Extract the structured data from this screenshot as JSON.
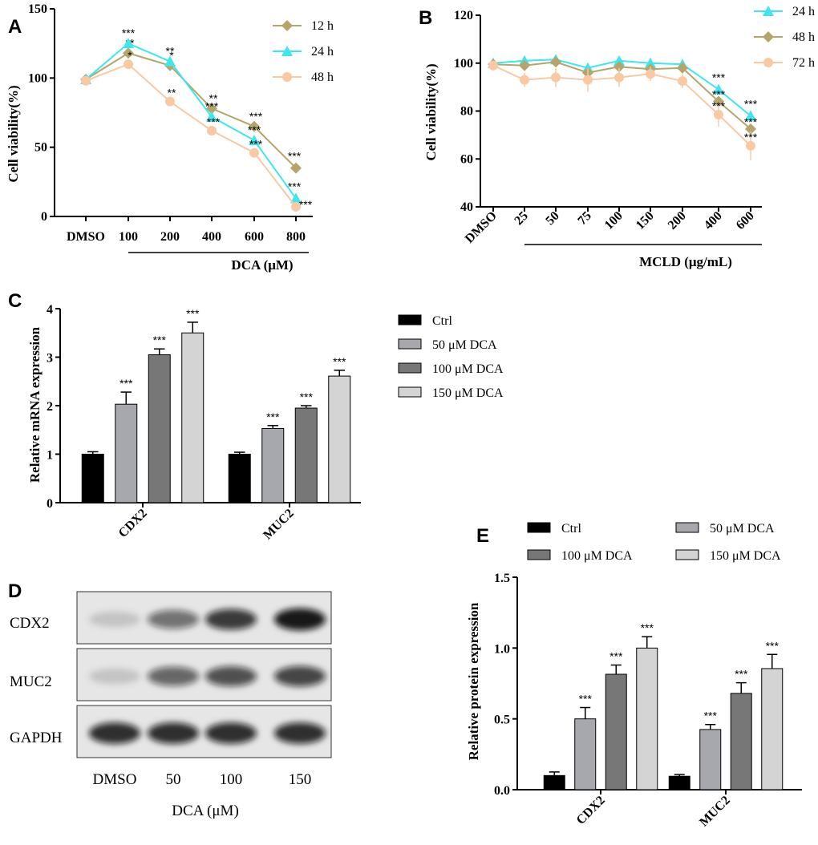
{
  "chart_data": [
    {
      "panel": "A",
      "type": "line",
      "ylabel": "Cell viability(%)",
      "xlabel": "DCA (μM)",
      "categories": [
        "DMSO",
        "100",
        "200",
        "400",
        "600",
        "800"
      ],
      "ylim": [
        0,
        150
      ],
      "yticks": [
        0,
        50,
        100,
        150
      ],
      "series": [
        {
          "name": "12 h",
          "color": "#B5A56A",
          "marker": "diamond",
          "values": [
            99,
            118,
            109,
            78,
            65,
            35
          ],
          "errors": [
            0,
            0,
            0,
            0,
            0,
            0
          ],
          "stars": [
            "",
            "**",
            "*",
            "**",
            "***",
            "***"
          ]
        },
        {
          "name": "24 h",
          "color": "#3EE6EE",
          "marker": "triangle",
          "values": [
            99,
            125,
            112,
            72,
            55,
            13
          ],
          "errors": [
            0,
            0,
            0,
            0,
            0,
            0
          ],
          "stars": [
            "",
            "***",
            "**",
            "***",
            "***",
            "***"
          ]
        },
        {
          "name": "48 h",
          "color": "#F9C9A4",
          "marker": "circle",
          "values": [
            98,
            110,
            83,
            62,
            46,
            7
          ],
          "errors": [
            0,
            0,
            0,
            0,
            0,
            0
          ],
          "stars": [
            "",
            "*",
            "**",
            "***",
            "***",
            "***"
          ]
        }
      ]
    },
    {
      "panel": "B",
      "type": "line",
      "ylabel": "Cell viability(%)",
      "xlabel": "MCLD (μg/mL)",
      "categories": [
        "DMSO",
        "25",
        "50",
        "75",
        "100",
        "150",
        "200",
        "400",
        "600"
      ],
      "ylim": [
        40,
        120
      ],
      "yticks": [
        40,
        60,
        80,
        100,
        120
      ],
      "series": [
        {
          "name": "24 h",
          "color": "#3EE6EE",
          "marker": "triangle",
          "values": [
            100,
            101,
            101.5,
            98,
            101,
            100,
            99.5,
            89,
            78
          ],
          "errors": [
            1,
            1.5,
            1.5,
            1.5,
            1.5,
            1,
            1,
            2,
            2
          ],
          "stars": [
            "",
            "",
            "",
            "",
            "",
            "",
            "",
            "***",
            "***"
          ]
        },
        {
          "name": "48 h",
          "color": "#B5A56A",
          "marker": "diamond",
          "values": [
            99.5,
            99,
            100.5,
            96,
            98.5,
            97.5,
            98,
            84,
            72.5
          ],
          "errors": [
            1,
            1.5,
            1.5,
            1.5,
            1.5,
            1.5,
            1.5,
            2,
            2
          ],
          "stars": [
            "",
            "",
            "",
            "",
            "",
            "",
            "",
            "***",
            "***"
          ]
        },
        {
          "name": "72 h",
          "color": "#F9C9A4",
          "marker": "circle",
          "values": [
            99,
            93,
            94,
            93,
            94,
            95.5,
            92.5,
            78.5,
            65.5
          ],
          "errors": [
            2,
            3,
            4,
            5,
            4,
            3,
            3,
            5,
            6
          ],
          "stars": [
            "",
            "",
            "",
            "",
            "",
            "",
            "",
            "***",
            "***"
          ]
        }
      ]
    },
    {
      "panel": "C",
      "type": "bar",
      "ylabel": "Relative mRNA expression",
      "categories": [
        "CDX2",
        "MUC2"
      ],
      "ylim": [
        0,
        4
      ],
      "yticks": [
        0,
        1,
        2,
        3,
        4
      ],
      "series": [
        {
          "name": "Ctrl",
          "color": "#000000",
          "values": [
            1.0,
            1.0
          ],
          "errors": [
            0.05,
            0.04
          ],
          "stars": [
            "",
            ""
          ]
        },
        {
          "name": "50   μM DCA",
          "color": "#A7A7AE",
          "values": [
            2.03,
            1.53
          ],
          "errors": [
            0.25,
            0.06
          ],
          "stars": [
            "***",
            "***"
          ]
        },
        {
          "name": "100  μM DCA",
          "color": "#777777",
          "values": [
            3.05,
            1.95
          ],
          "errors": [
            0.12,
            0.05
          ],
          "stars": [
            "***",
            "***"
          ]
        },
        {
          "name": "150  μM DCA",
          "color": "#D4D4D4",
          "values": [
            3.5,
            2.61
          ],
          "errors": [
            0.22,
            0.12
          ],
          "stars": [
            "***",
            "***"
          ]
        }
      ]
    },
    {
      "panel": "E",
      "type": "bar",
      "ylabel": "Relative protein expression",
      "categories": [
        "CDX2",
        "MUC2"
      ],
      "ylim": [
        0,
        1.5
      ],
      "yticks": [
        "0.0",
        "0.5",
        "1.0",
        "1.5"
      ],
      "series": [
        {
          "name": "Ctrl",
          "color": "#000000",
          "values": [
            0.1,
            0.095
          ],
          "errors": [
            0.025,
            0.012
          ],
          "stars": [
            "",
            ""
          ]
        },
        {
          "name": "50   μM DCA",
          "color": "#A7A7AE",
          "values": [
            0.5,
            0.425
          ],
          "errors": [
            0.08,
            0.035
          ],
          "stars": [
            "***",
            "***"
          ]
        },
        {
          "name": "100 μM DCA",
          "color": "#777777",
          "values": [
            0.815,
            0.68
          ],
          "errors": [
            0.065,
            0.075
          ],
          "stars": [
            "***",
            "***"
          ]
        },
        {
          "name": "150  μM DCA",
          "color": "#D4D4D4",
          "values": [
            1.0,
            0.855
          ],
          "errors": [
            0.08,
            0.1
          ],
          "stars": [
            "***",
            "***"
          ]
        }
      ]
    }
  ],
  "blot": {
    "panel": "D",
    "rows": [
      "CDX2",
      "MUC2",
      "GAPDH"
    ],
    "lanes": [
      "DMSO",
      "50",
      "100",
      "150"
    ],
    "xlabel": "DCA (μM)",
    "band_intensity": [
      [
        0.15,
        0.55,
        0.8,
        0.95
      ],
      [
        0.15,
        0.6,
        0.7,
        0.75
      ],
      [
        0.85,
        0.85,
        0.85,
        0.85
      ]
    ]
  }
}
